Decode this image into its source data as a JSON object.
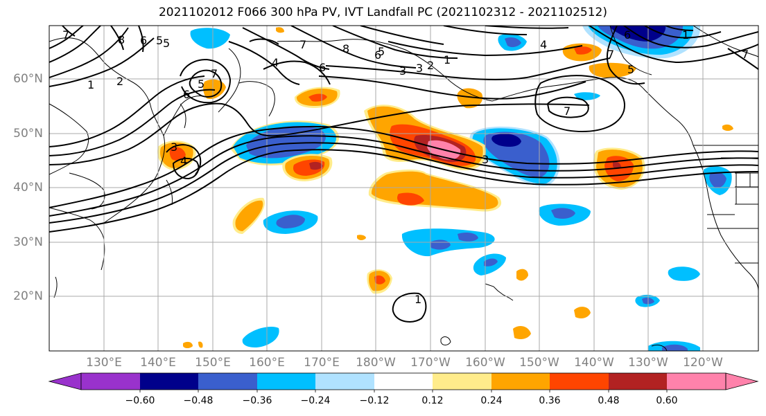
{
  "title": "2021102012 F066 300 hPa PV, IVT Landfall PC (2021102312 - 2021102512)",
  "lat_labels": [
    "60°N",
    "50°N",
    "40°N",
    "30°N",
    "20°N"
  ],
  "lon_labels": [
    "130°E",
    "140°E",
    "150°E",
    "160°E",
    "170°E",
    "180°W",
    "170°W",
    "160°W",
    "150°W",
    "140°W",
    "130°W",
    "120°W"
  ],
  "colorbar": {
    "labels": [
      "−0.60",
      "−0.48",
      "−0.36",
      "−0.24",
      "−0.12",
      "0.12",
      "0.24",
      "0.36",
      "0.48",
      "0.60"
    ],
    "colors": [
      "#9932cc",
      "#00008b",
      "#3a5fcd",
      "#00bfff",
      "#b0e2ff",
      "#ffffff",
      "#ffec8b",
      "#ffa500",
      "#ff4500",
      "#b22222",
      "#ff82ab"
    ]
  },
  "contour_labels": [
    "7",
    "8",
    "6",
    "5",
    "1",
    "2",
    "7",
    "5",
    "6",
    "3",
    "4",
    "6",
    "8",
    "5",
    "3",
    "3",
    "2",
    "1",
    "4",
    "7",
    "6",
    "7",
    "5",
    "7",
    "1",
    "6",
    "7",
    "5",
    "4",
    "3",
    "1"
  ],
  "fill_colors": {
    "neg_dark": "#00008b",
    "neg_mid": "#3a5fcd",
    "neg_light": "#00bfff",
    "neg_pale": "#b0e2ff",
    "pos_pale": "#ffec8b",
    "pos_orange": "#ffa500",
    "pos_red": "#ff4500",
    "pos_dark": "#b22222",
    "pos_pink": "#ff82ab"
  }
}
